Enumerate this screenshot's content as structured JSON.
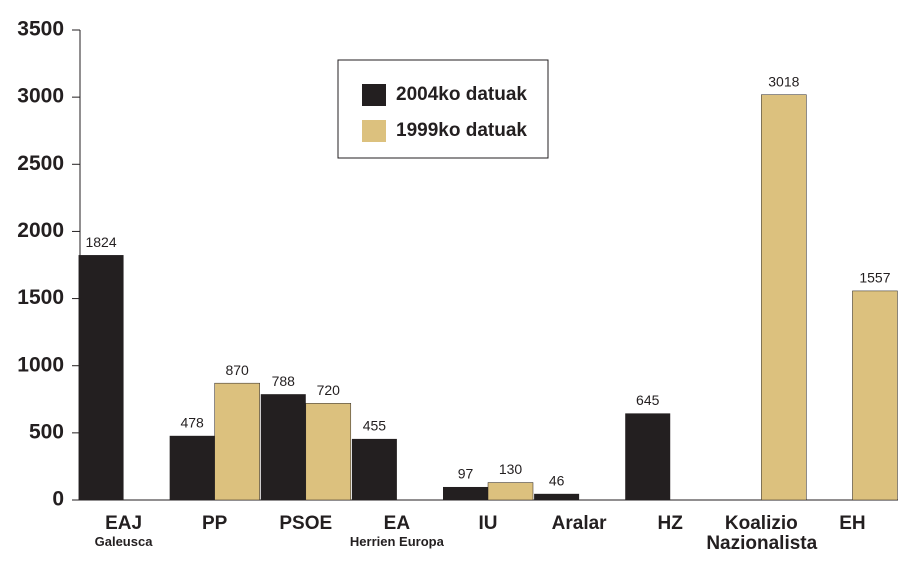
{
  "chart_data": {
    "type": "bar",
    "categories": [
      "EAJ",
      "PP",
      "PSOE",
      "EA",
      "IU",
      "Aralar",
      "HZ",
      "Koalizio Nazionalista",
      "EH"
    ],
    "sublabels": [
      "Galeusca",
      null,
      null,
      "Herrien Europa",
      null,
      null,
      null,
      null,
      null
    ],
    "series": [
      {
        "name": "2004ko datuak",
        "color": "#231f20",
        "values": [
          1824,
          478,
          788,
          455,
          97,
          46,
          645,
          null,
          null
        ]
      },
      {
        "name": "1999ko datuak",
        "color": "#dcc17e",
        "values": [
          null,
          870,
          720,
          null,
          130,
          null,
          null,
          3018,
          1557
        ]
      }
    ],
    "ylim": [
      0,
      3500
    ],
    "yticks": [
      0,
      500,
      1000,
      1500,
      2000,
      2500,
      3000,
      3500
    ],
    "legend": "top-center"
  }
}
